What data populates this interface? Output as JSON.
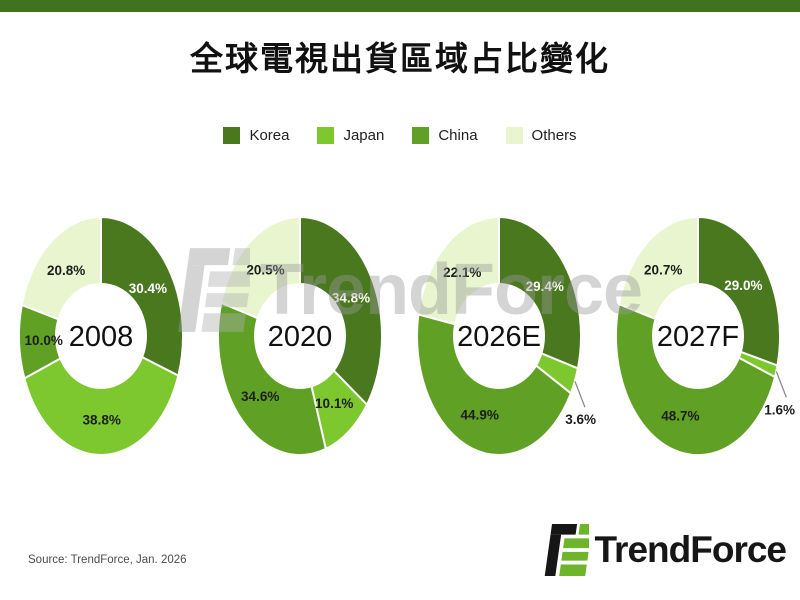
{
  "page": {
    "title": "全球電視出貨區域占比變化",
    "top_bar_color": "#3f7320",
    "source_note": "Source: TrendForce, Jan. 2026",
    "watermark_text": "TrendForce",
    "logo_text": "TrendForce"
  },
  "legend": {
    "items": [
      {
        "label": "Korea",
        "color": "#4a781e"
      },
      {
        "label": "Japan",
        "color": "#7dc72f"
      },
      {
        "label": "China",
        "color": "#60a024"
      },
      {
        "label": "Others",
        "color": "#e8f5cf"
      }
    ]
  },
  "chart_data": {
    "type": "pie",
    "subtype": "donut",
    "title": "全球電視出貨區域占比變化",
    "legend_entries": [
      "Korea",
      "Japan",
      "China",
      "Others"
    ],
    "legend_position": "top",
    "direction": "clockwise",
    "start_angle": "12-o-clock",
    "colors": {
      "Korea": "#4a781e",
      "Japan": "#7dc72f",
      "China": "#60a024",
      "Others": "#e8f5cf"
    },
    "label_text_colors": {
      "Korea": "#ffffff",
      "Japan": "#1d1d1d",
      "China": "#1d1d1d",
      "Others": "#1d1d1d"
    },
    "small_slice_callout_threshold_pct": 5,
    "charts": [
      {
        "center_label": "2008",
        "values": {
          "Korea": 30.4,
          "Japan": 38.8,
          "China": 10.0,
          "Others": 20.8
        }
      },
      {
        "center_label": "2020",
        "values": {
          "Korea": 34.8,
          "Japan": 10.1,
          "China": 34.6,
          "Others": 20.5
        }
      },
      {
        "center_label": "2026E",
        "values": {
          "Korea": 29.4,
          "Japan": 3.6,
          "China": 44.9,
          "Others": 22.1
        }
      },
      {
        "center_label": "2027F",
        "values": {
          "Korea": 29.0,
          "Japan": 1.6,
          "China": 48.7,
          "Others": 20.7
        }
      }
    ]
  }
}
